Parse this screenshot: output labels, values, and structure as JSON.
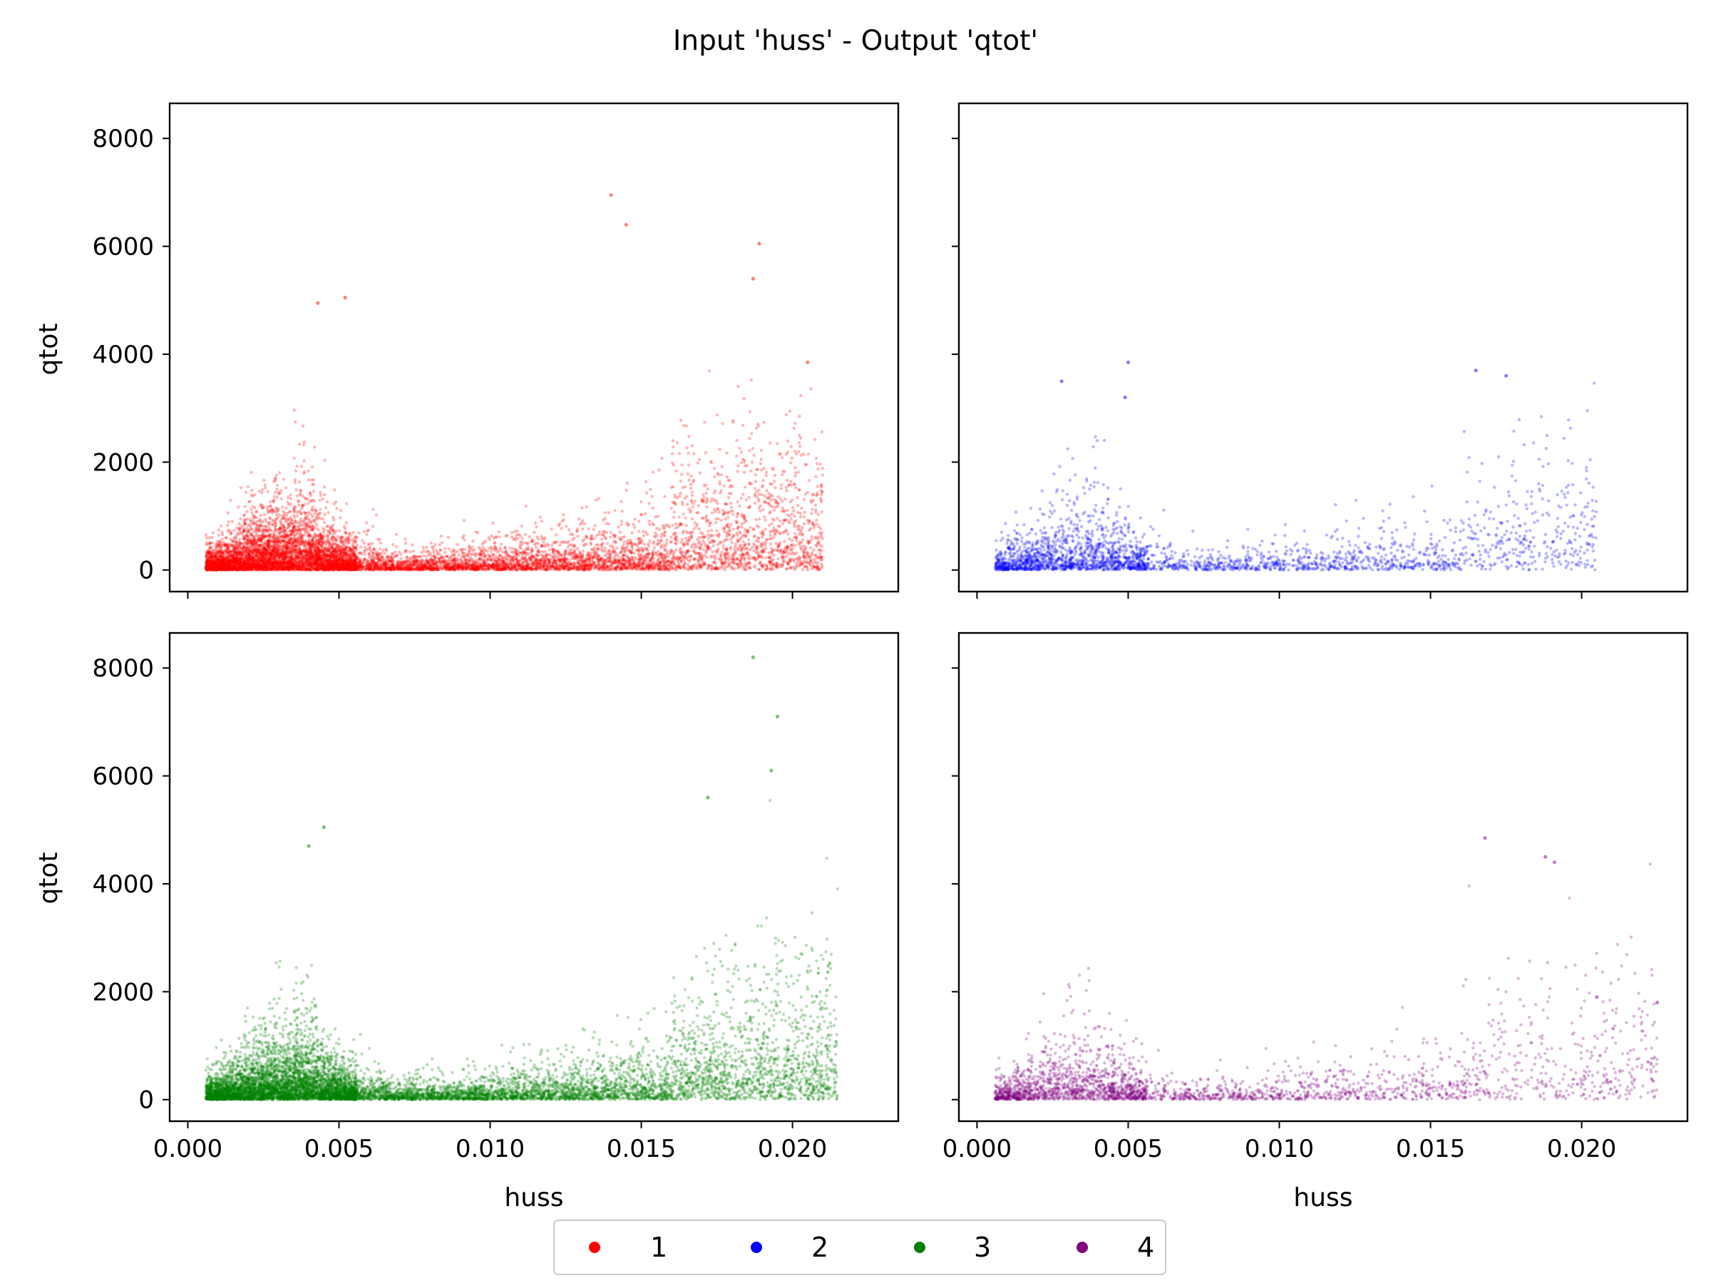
{
  "figure": {
    "title": "Input 'huss' - Output 'qtot'"
  },
  "chart_data": [
    {
      "type": "scatter",
      "series": [
        {
          "name": "1",
          "color": "#ff0000"
        }
      ],
      "xlabel": "",
      "ylabel": "qtot",
      "xlim": [
        -0.0006,
        0.0235
      ],
      "ylim": [
        -400,
        8650
      ],
      "xticks": [
        0.0,
        0.005,
        0.01,
        0.015,
        0.02
      ],
      "yticks": [
        0,
        2000,
        4000,
        6000,
        8000
      ],
      "x_tick_labels_visible": false,
      "y_tick_labels_visible": true,
      "approx_x_range": [
        0.0006,
        0.021
      ],
      "approx_y_max": 6950,
      "notable_points": [
        [
          0.014,
          6950
        ],
        [
          0.0145,
          6400
        ],
        [
          0.0189,
          6050
        ],
        [
          0.0052,
          5050
        ],
        [
          0.0043,
          4950
        ],
        [
          0.0187,
          5400
        ],
        [
          0.0205,
          3850
        ]
      ]
    },
    {
      "type": "scatter",
      "series": [
        {
          "name": "2",
          "color": "#0000ff"
        }
      ],
      "xlabel": "",
      "ylabel": "",
      "xlim": [
        -0.0006,
        0.0235
      ],
      "ylim": [
        -400,
        8650
      ],
      "xticks": [
        0.0,
        0.005,
        0.01,
        0.015,
        0.02
      ],
      "yticks": [
        0,
        2000,
        4000,
        6000,
        8000
      ],
      "x_tick_labels_visible": false,
      "y_tick_labels_visible": false,
      "approx_x_range": [
        0.0006,
        0.0205
      ],
      "approx_y_max": 3850,
      "notable_points": [
        [
          0.005,
          3850
        ],
        [
          0.0028,
          3500
        ],
        [
          0.0165,
          3700
        ],
        [
          0.0175,
          3600
        ],
        [
          0.0049,
          3200
        ]
      ]
    },
    {
      "type": "scatter",
      "series": [
        {
          "name": "3",
          "color": "#008000"
        }
      ],
      "xlabel": "huss",
      "ylabel": "qtot",
      "xlim": [
        -0.0006,
        0.0235
      ],
      "ylim": [
        -400,
        8650
      ],
      "xticks": [
        0.0,
        0.005,
        0.01,
        0.015,
        0.02
      ],
      "yticks": [
        0,
        2000,
        4000,
        6000,
        8000
      ],
      "x_tick_labels_visible": true,
      "y_tick_labels_visible": true,
      "approx_x_range": [
        0.0006,
        0.0215
      ],
      "approx_y_max": 8200,
      "notable_points": [
        [
          0.0187,
          8200
        ],
        [
          0.0195,
          7100
        ],
        [
          0.0193,
          6100
        ],
        [
          0.0172,
          5600
        ],
        [
          0.0045,
          5050
        ],
        [
          0.004,
          4700
        ]
      ]
    },
    {
      "type": "scatter",
      "series": [
        {
          "name": "4",
          "color": "#800080"
        }
      ],
      "xlabel": "huss",
      "ylabel": "",
      "xlim": [
        -0.0006,
        0.0235
      ],
      "ylim": [
        -400,
        8650
      ],
      "xticks": [
        0.0,
        0.005,
        0.01,
        0.015,
        0.02
      ],
      "yticks": [
        0,
        2000,
        4000,
        6000,
        8000
      ],
      "x_tick_labels_visible": true,
      "y_tick_labels_visible": false,
      "approx_x_range": [
        0.0006,
        0.0225
      ],
      "approx_y_max": 4850,
      "notable_points": [
        [
          0.0168,
          4850
        ],
        [
          0.0188,
          4500
        ],
        [
          0.0191,
          4400
        ],
        [
          0.0225,
          1800
        ],
        [
          0.0205,
          1900
        ]
      ]
    }
  ],
  "legend": {
    "placement": "bottom-center",
    "entries": [
      {
        "label": "1",
        "color": "#ff0000"
      },
      {
        "label": "2",
        "color": "#0000ff"
      },
      {
        "label": "3",
        "color": "#008000"
      },
      {
        "label": "4",
        "color": "#800080"
      }
    ]
  }
}
